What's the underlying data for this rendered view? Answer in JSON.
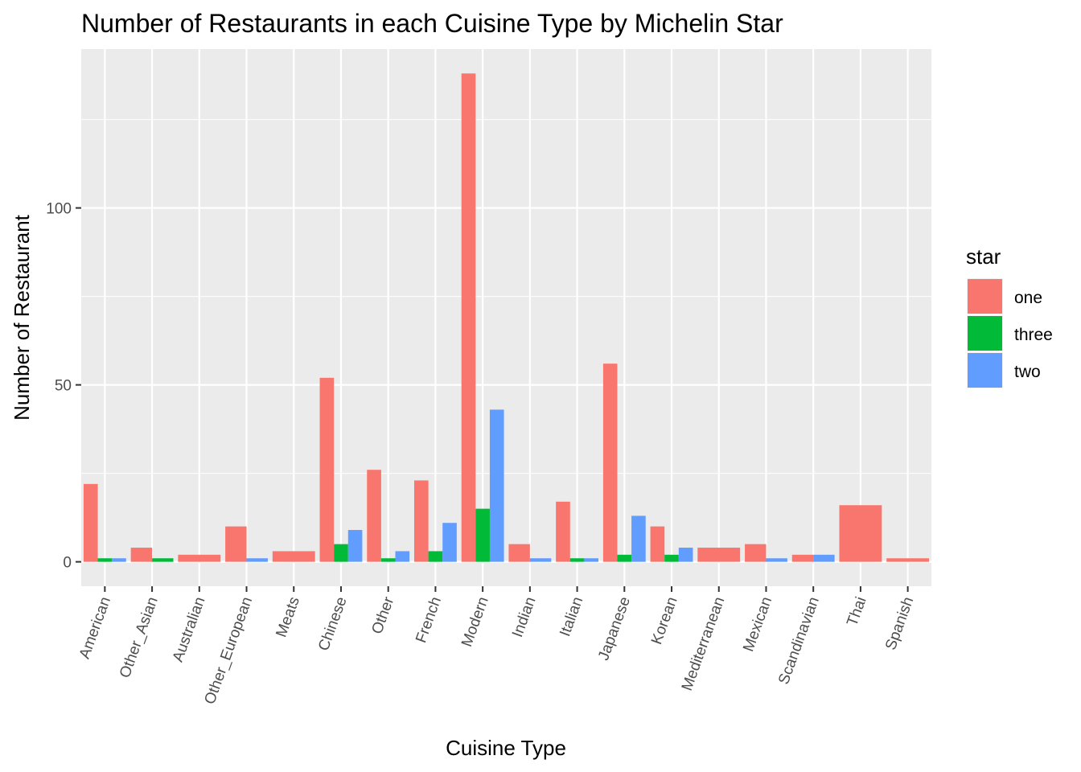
{
  "chart_data": {
    "type": "bar",
    "title": "Number of Restaurants in each Cuisine Type by Michelin Star",
    "xlabel": "Cuisine Type",
    "ylabel": "Number of Restaurant",
    "ylim": [
      -6.9,
      144.9
    ],
    "yticks": [
      0,
      50,
      100
    ],
    "grid": true,
    "legend_position": "right",
    "legend_title": "star",
    "categories": [
      "American",
      "Other_Asian",
      "Australian",
      "Other_European",
      "Meats",
      "Chinese",
      "Other",
      "French",
      "Modern",
      "Indian",
      "Italian",
      "Japanese",
      "Korean",
      "Mediterranean",
      "Mexican",
      "Scandinavian",
      "Thai",
      "Spanish"
    ],
    "series": [
      {
        "name": "one",
        "color": "#F8766D",
        "values": [
          22,
          4,
          2,
          10,
          3,
          52,
          26,
          23,
          138,
          5,
          17,
          56,
          10,
          4,
          5,
          2,
          16,
          1
        ]
      },
      {
        "name": "three",
        "color": "#00BA38",
        "values": [
          1,
          1,
          null,
          null,
          null,
          5,
          1,
          3,
          15,
          null,
          1,
          2,
          2,
          null,
          null,
          null,
          null,
          null
        ]
      },
      {
        "name": "two",
        "color": "#619CFF",
        "values": [
          1,
          null,
          null,
          1,
          null,
          9,
          3,
          11,
          43,
          1,
          1,
          13,
          4,
          null,
          1,
          2,
          null,
          null
        ]
      }
    ]
  }
}
